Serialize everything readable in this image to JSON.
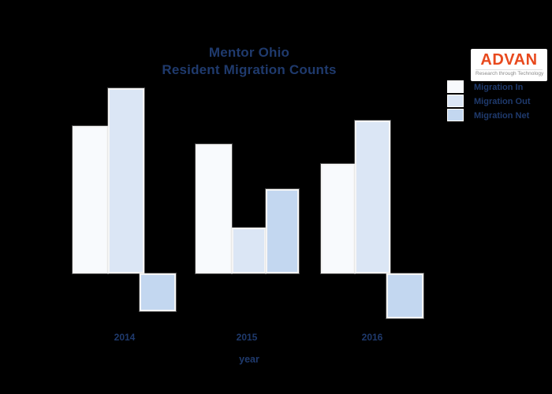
{
  "page": {
    "background": "#000000"
  },
  "header": {
    "title_line1": "Mentor Ohio",
    "title_line2": "Resident Migration Counts"
  },
  "logo": {
    "name": "ADVAN",
    "tagline": "Research through Technology"
  },
  "legend": {
    "items": [
      {
        "label": "Migration In",
        "color": "#f8fafd"
      },
      {
        "label": "Migration Out",
        "color": "#dbe6f5"
      },
      {
        "label": "Migration Net",
        "color": "#c3d7f0"
      }
    ]
  },
  "x_axis": {
    "title": "year",
    "ticks": [
      "2014",
      "2015",
      "2016"
    ]
  },
  "chart_data": {
    "type": "bar",
    "title": "Mentor Ohio - Resident Migration Counts",
    "xlabel": "year",
    "ylabel": "",
    "categories": [
      "2014",
      "2015",
      "2016"
    ],
    "series": [
      {
        "name": "Migration In",
        "color": "#f8fafd",
        "values": [
          187,
          164,
          139
        ]
      },
      {
        "name": "Migration Out",
        "color": "#dbe6f5",
        "values": [
          235,
          58,
          194
        ]
      },
      {
        "name": "Migration Net",
        "color": "#c3d7f0",
        "values": [
          -48,
          107,
          -57
        ]
      }
    ],
    "ylim": [
      -70,
      250
    ],
    "grid": false,
    "legend_position": "upper-right",
    "value_axis_note": "no y-axis or numeric labels visible; values are pixel-proportional estimates"
  },
  "colors": {
    "background": "#000000",
    "text": "#1f3a6d",
    "bar_border": "#f5f5f5",
    "logo_text": "#e8491d",
    "logo_tagline": "#8c8c8c",
    "logo_background": "#ffffff"
  }
}
